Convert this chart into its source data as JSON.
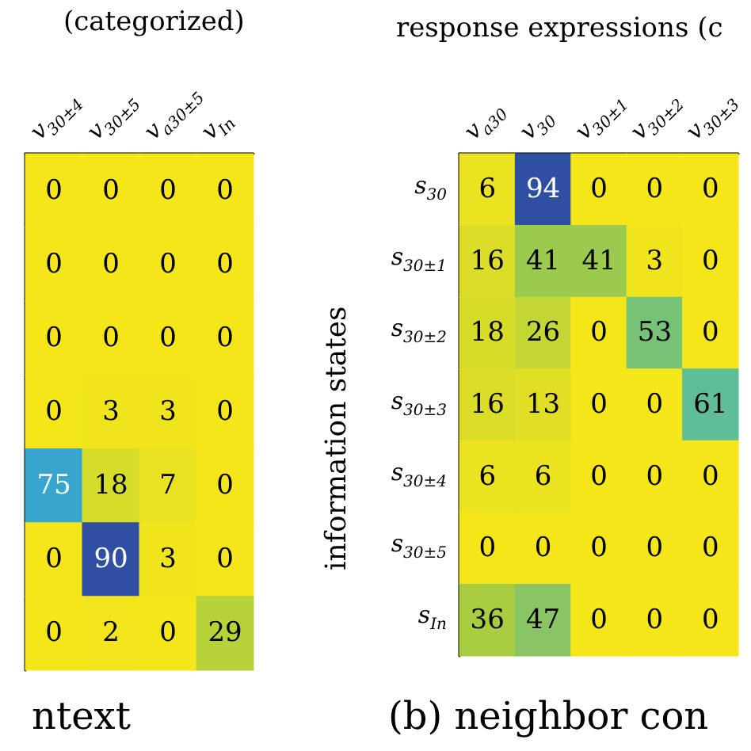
{
  "chart_data": [
    {
      "type": "heatmap",
      "title": "(categorized)",
      "xlabel": "ntext",
      "tick_labels": "x",
      "categories": [
        "v$_{30±4}$",
        "v$_{30±5}$",
        "v$_{a30±5}$",
        "v$_{In}$"
      ],
      "y_categories": [
        null,
        null,
        null,
        null,
        null,
        null,
        null
      ],
      "cells": [
        [
          0,
          0,
          0,
          0
        ],
        [
          0,
          0,
          0,
          0
        ],
        [
          0,
          0,
          0,
          0
        ],
        [
          0,
          3,
          3,
          0
        ],
        [
          75,
          18,
          7,
          0
        ],
        [
          0,
          90,
          3,
          0
        ],
        [
          0,
          2,
          0,
          29
        ]
      ],
      "data_labels": true
    },
    {
      "type": "heatmap",
      "title": "response expressions (c",
      "xlabel": "(b) neighbor con",
      "ylabel": "information states",
      "categories": [
        "v$_{a30}$",
        "v$_{30}$",
        "v$_{30±1}$",
        "v$_{30±2}$",
        "v$_{30±3}$"
      ],
      "y_categories": [
        "s$_{30}$",
        "s$_{30±1}$",
        "s$_{30±2}$",
        "s$_{30±3}$",
        "s$_{30±4}$",
        "s$_{30±5}$",
        "s$_{In}$"
      ],
      "cells": [
        [
          6,
          94,
          0,
          0,
          0
        ],
        [
          16,
          41,
          41,
          3,
          0
        ],
        [
          18,
          26,
          0,
          53,
          0
        ],
        [
          16,
          13,
          0,
          0,
          61
        ],
        [
          6,
          6,
          0,
          0,
          0
        ],
        [
          0,
          0,
          0,
          0,
          0
        ],
        [
          36,
          47,
          0,
          0,
          0
        ]
      ],
      "data_labels": true
    }
  ]
}
